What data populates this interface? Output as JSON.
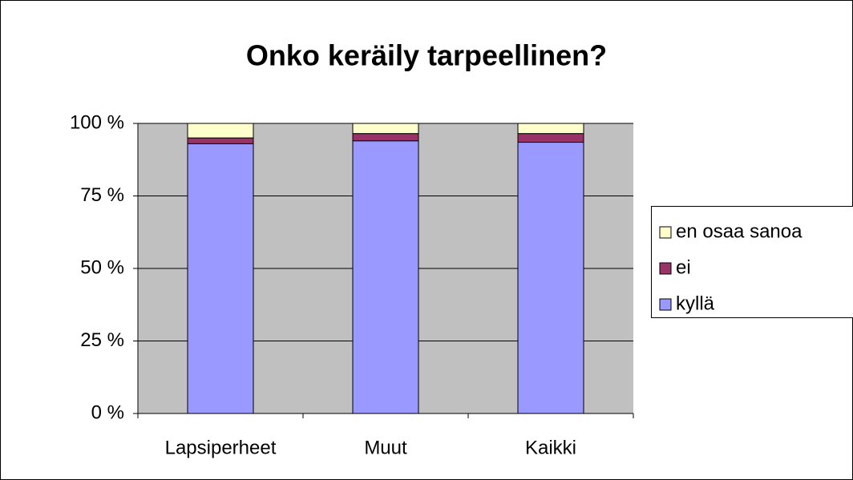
{
  "chart_data": {
    "type": "stacked-bar",
    "title": "Onko keräily tarpeellinen?",
    "categories": [
      "Lapsiperheet",
      "Muut",
      "Kaikki"
    ],
    "series": [
      {
        "name": "kyllä",
        "color": "#9999ff",
        "values": [
          93,
          94,
          93.5
        ]
      },
      {
        "name": "ei",
        "color": "#993366",
        "values": [
          2,
          2.5,
          3
        ]
      },
      {
        "name": "en osaa sanoa",
        "color": "#ffffcc",
        "values": [
          5,
          3.5,
          3.5
        ]
      }
    ],
    "ylim": [
      0,
      100
    ],
    "yticks": [
      {
        "value": 0,
        "label": "0 %"
      },
      {
        "value": 25,
        "label": "25 %"
      },
      {
        "value": 50,
        "label": "50 %"
      },
      {
        "value": 75,
        "label": "75 %"
      },
      {
        "value": 100,
        "label": "100 %"
      }
    ],
    "grid": true,
    "legend": "right"
  }
}
